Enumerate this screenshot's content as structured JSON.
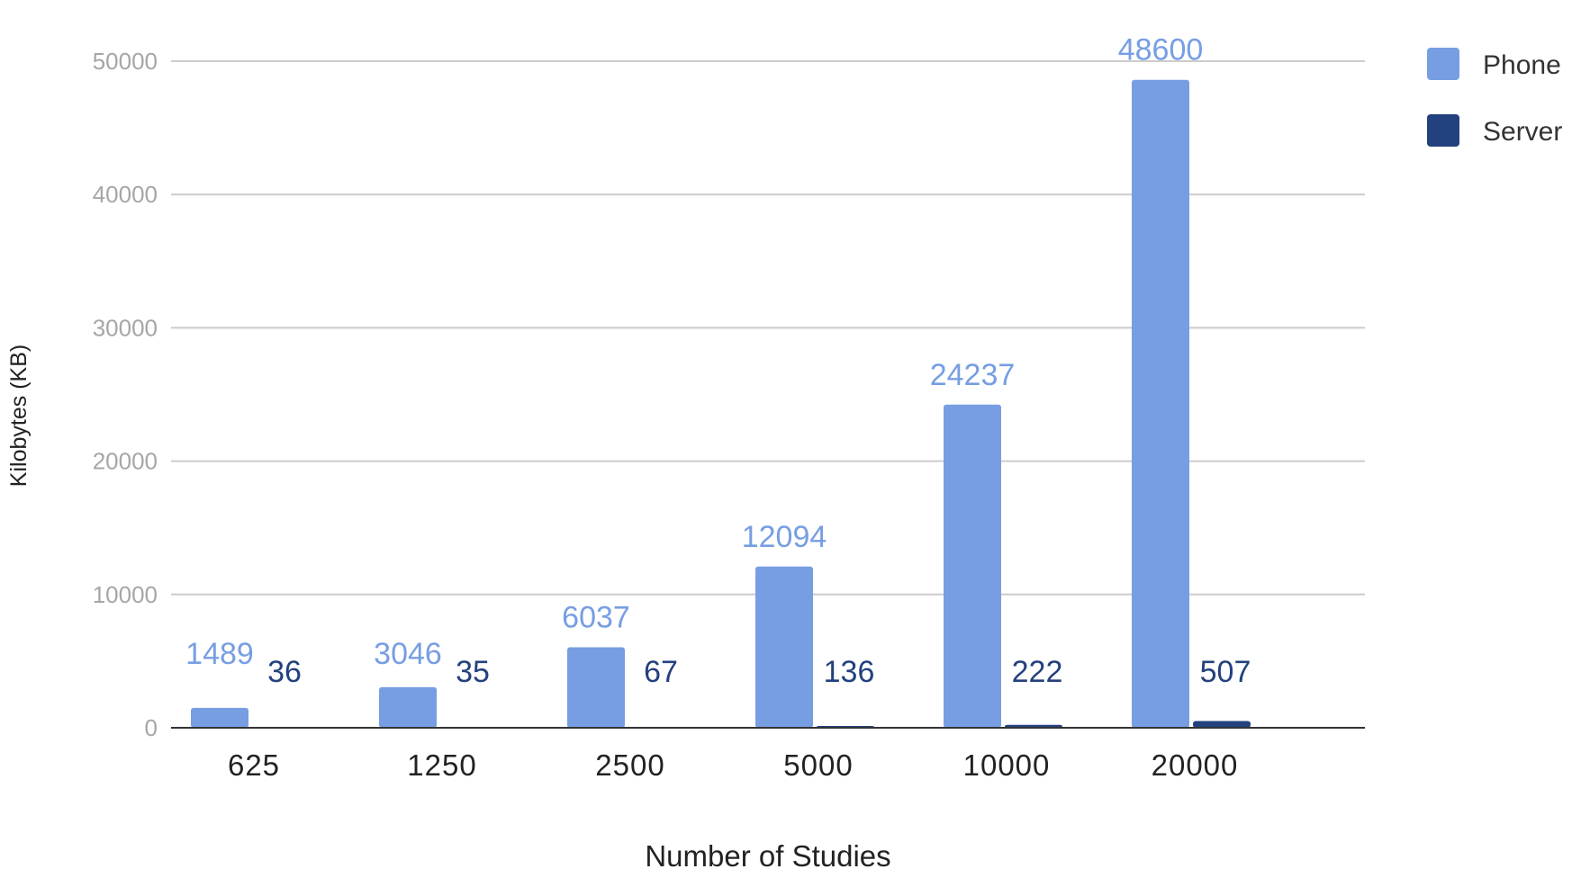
{
  "chart_data": {
    "type": "bar",
    "categories": [
      "625",
      "1250",
      "2500",
      "5000",
      "10000",
      "20000"
    ],
    "series": [
      {
        "name": "Phone",
        "color": "#779ee3",
        "values": [
          1489,
          3046,
          6037,
          12094,
          24237,
          48600
        ]
      },
      {
        "name": "Server",
        "color": "#23417e",
        "values": [
          36,
          35,
          67,
          136,
          222,
          507
        ]
      }
    ],
    "xlabel": "Number of Studies",
    "ylabel": "Kilobytes (KB)",
    "ylim": [
      0,
      50000
    ],
    "yticks": [
      0,
      10000,
      20000,
      30000,
      40000,
      50000
    ],
    "grid": true,
    "legend": "right"
  }
}
